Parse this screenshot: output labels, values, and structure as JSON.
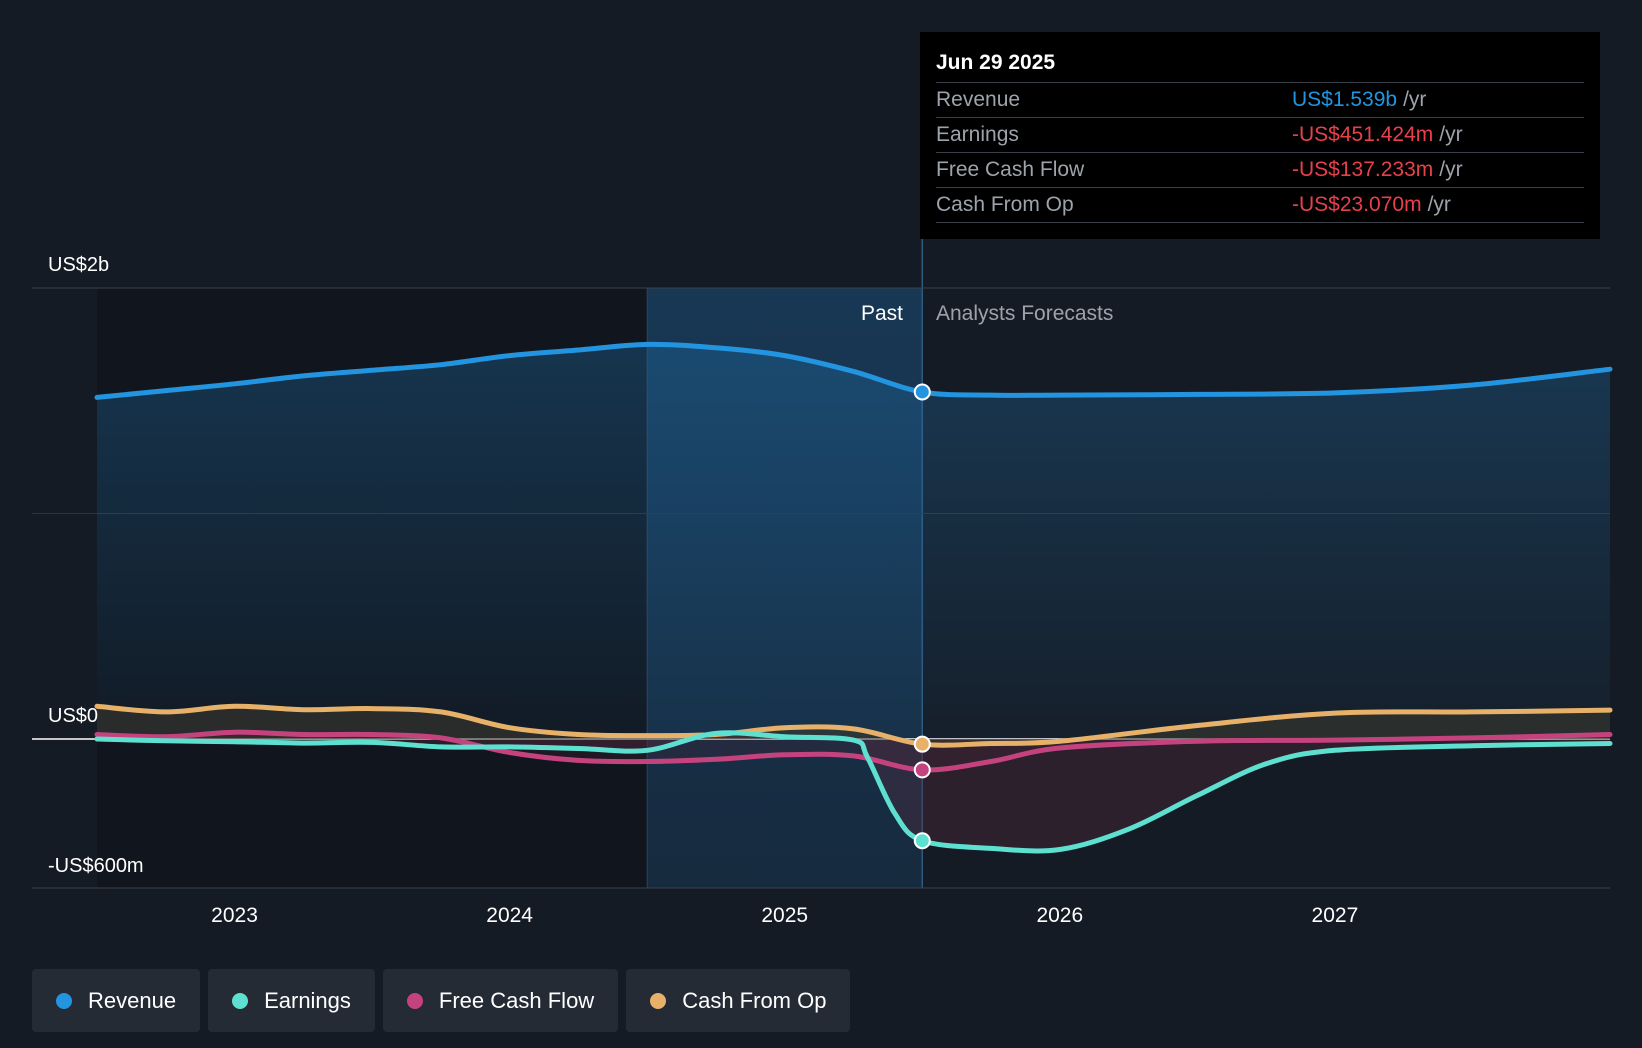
{
  "chart_data": {
    "type": "line",
    "title": "",
    "y_axis": {
      "max_label": "US$2b",
      "zero_label": "US$0",
      "min_label": "-US$600m",
      "ylim": [
        -600,
        2000
      ],
      "unit": "US$m"
    },
    "x_ticks": [
      "2023",
      "2024",
      "2025",
      "2026",
      "2027"
    ],
    "x_range": [
      2022.5,
      2028.0
    ],
    "past_end": 2025.5,
    "highlight_start": 2024.5,
    "region_labels": {
      "past": "Past",
      "forecast": "Analysts Forecasts"
    },
    "series": [
      {
        "name": "Revenue",
        "color": "#2394df",
        "points": [
          [
            2022.5,
            1515
          ],
          [
            2022.75,
            1545
          ],
          [
            2023.0,
            1575
          ],
          [
            2023.25,
            1610
          ],
          [
            2023.5,
            1635
          ],
          [
            2023.75,
            1660
          ],
          [
            2024.0,
            1700
          ],
          [
            2024.25,
            1725
          ],
          [
            2024.5,
            1750
          ],
          [
            2024.75,
            1735
          ],
          [
            2025.0,
            1700
          ],
          [
            2025.25,
            1630
          ],
          [
            2025.5,
            1539
          ],
          [
            2025.75,
            1525
          ],
          [
            2026.0,
            1525
          ],
          [
            2026.5,
            1528
          ],
          [
            2027.0,
            1535
          ],
          [
            2027.5,
            1570
          ],
          [
            2028.0,
            1640
          ]
        ]
      },
      {
        "name": "Earnings",
        "color": "#5ee0d1",
        "points": [
          [
            2022.5,
            0
          ],
          [
            2022.75,
            -8
          ],
          [
            2023.0,
            -12
          ],
          [
            2023.25,
            -18
          ],
          [
            2023.5,
            -15
          ],
          [
            2023.75,
            -35
          ],
          [
            2024.0,
            -35
          ],
          [
            2024.25,
            -42
          ],
          [
            2024.5,
            -50
          ],
          [
            2024.75,
            25
          ],
          [
            2025.0,
            10
          ],
          [
            2025.25,
            -5
          ],
          [
            2025.3,
            -80
          ],
          [
            2025.4,
            -330
          ],
          [
            2025.5,
            -451
          ],
          [
            2025.75,
            -485
          ],
          [
            2026.0,
            -490
          ],
          [
            2026.25,
            -400
          ],
          [
            2026.5,
            -250
          ],
          [
            2026.75,
            -110
          ],
          [
            2027.0,
            -50
          ],
          [
            2027.5,
            -30
          ],
          [
            2028.0,
            -20
          ]
        ]
      },
      {
        "name": "Free Cash Flow",
        "color": "#c4437f",
        "points": [
          [
            2022.5,
            20
          ],
          [
            2022.75,
            10
          ],
          [
            2023.0,
            30
          ],
          [
            2023.25,
            20
          ],
          [
            2023.5,
            20
          ],
          [
            2023.75,
            5
          ],
          [
            2024.0,
            -60
          ],
          [
            2024.25,
            -95
          ],
          [
            2024.5,
            -100
          ],
          [
            2024.75,
            -90
          ],
          [
            2025.0,
            -70
          ],
          [
            2025.25,
            -75
          ],
          [
            2025.5,
            -137
          ],
          [
            2025.75,
            -100
          ],
          [
            2026.0,
            -40
          ],
          [
            2026.5,
            -10
          ],
          [
            2027.0,
            -5
          ],
          [
            2027.5,
            5
          ],
          [
            2028.0,
            20
          ]
        ]
      },
      {
        "name": "Cash From Op",
        "color": "#e7b169",
        "points": [
          [
            2022.5,
            145
          ],
          [
            2022.75,
            120
          ],
          [
            2023.0,
            145
          ],
          [
            2023.25,
            130
          ],
          [
            2023.5,
            135
          ],
          [
            2023.75,
            120
          ],
          [
            2024.0,
            50
          ],
          [
            2024.25,
            20
          ],
          [
            2024.5,
            15
          ],
          [
            2024.75,
            20
          ],
          [
            2025.0,
            50
          ],
          [
            2025.25,
            45
          ],
          [
            2025.5,
            -23
          ],
          [
            2025.75,
            -20
          ],
          [
            2026.0,
            -10
          ],
          [
            2026.5,
            60
          ],
          [
            2027.0,
            115
          ],
          [
            2027.5,
            120
          ],
          [
            2028.0,
            128
          ]
        ]
      }
    ]
  },
  "tooltip": {
    "date": "Jun 29 2025",
    "rows": [
      {
        "name": "Revenue",
        "value": "US$1.539b",
        "unit": "/yr",
        "color": "#2394df"
      },
      {
        "name": "Earnings",
        "value": "-US$451.424m",
        "unit": "/yr",
        "color": "#e8404b"
      },
      {
        "name": "Free Cash Flow",
        "value": "-US$137.233m",
        "unit": "/yr",
        "color": "#e8404b"
      },
      {
        "name": "Cash From Op",
        "value": "-US$23.070m",
        "unit": "/yr",
        "color": "#e8404b"
      }
    ]
  },
  "legend": [
    {
      "label": "Revenue",
      "color": "#2394df"
    },
    {
      "label": "Earnings",
      "color": "#5ee0d1"
    },
    {
      "label": "Free Cash Flow",
      "color": "#c4437f"
    },
    {
      "label": "Cash From Op",
      "color": "#e7b169"
    }
  ]
}
